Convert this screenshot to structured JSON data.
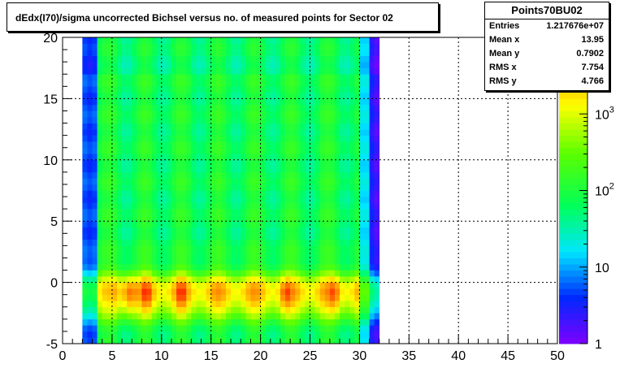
{
  "title": "dEdx(I70)/sigma uncorrected Bichsel versus no. of measured points for Sector 02",
  "stats": {
    "name": "Points70BU02",
    "rows": [
      {
        "label": "Entries",
        "value": "1.217676e+07"
      },
      {
        "label": "Mean x",
        "value": "13.95"
      },
      {
        "label": "Mean y",
        "value": "0.7902"
      },
      {
        "label": "RMS x",
        "value": "7.754"
      },
      {
        "label": "RMS y",
        "value": "4.766"
      }
    ]
  },
  "chart_data": {
    "type": "heatmap",
    "title": "dEdx(I70)/sigma uncorrected Bichsel versus no. of measured points for Sector 02",
    "xlim": [
      0,
      50
    ],
    "ylim": [
      -5,
      20
    ],
    "x_ticks": [
      "0",
      "5",
      "10",
      "15",
      "20",
      "25",
      "30",
      "35",
      "40",
      "45",
      "50"
    ],
    "y_ticks": [
      "-5",
      "0",
      "5",
      "10",
      "15",
      "20"
    ],
    "grid": true,
    "colorbar": {
      "scale": "log",
      "range": [
        1,
        10000
      ],
      "ticks": [
        {
          "value": 1,
          "text": "1",
          "sup": ""
        },
        {
          "value": 10,
          "text": "10",
          "sup": ""
        },
        {
          "value": 100,
          "text": "10",
          "sup": "2"
        },
        {
          "value": 1000,
          "text": "10",
          "sup": "3"
        },
        {
          "value": 10000,
          "text": "",
          "sup": "4"
        }
      ]
    },
    "populated_x_range": [
      2,
      32
    ],
    "peak_region": {
      "x": [
        6,
        30
      ],
      "y": [
        -3,
        1
      ]
    },
    "high_density_columns_x": [
      6.5,
      7,
      8.5,
      12,
      22.5,
      27.5
    ]
  }
}
